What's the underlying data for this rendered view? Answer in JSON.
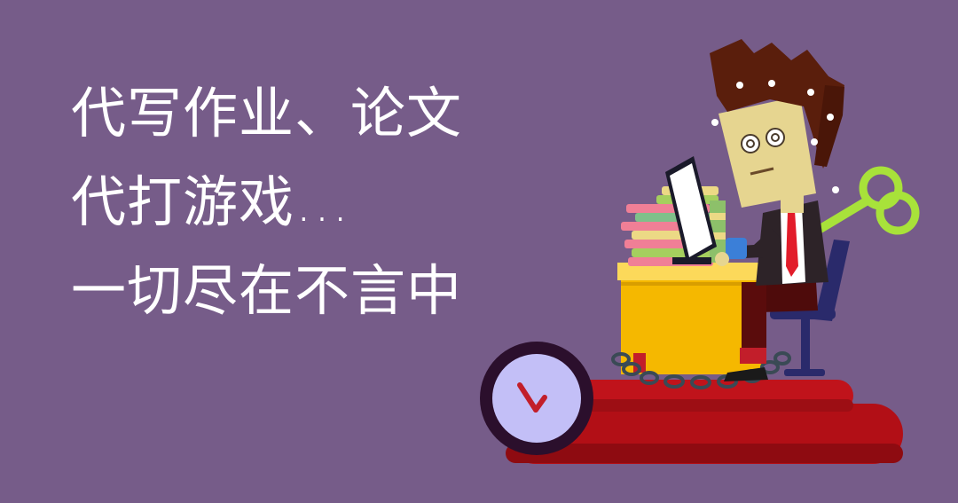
{
  "background_color": "#765c89",
  "text_color": "#ffffff",
  "headline": {
    "lines": [
      "代写作业、论文",
      "代打游戏…",
      "一切尽在不言中"
    ]
  },
  "illustration": {
    "icons": [
      "overworked-man",
      "computer-monitor",
      "book-stack",
      "desk",
      "office-chair",
      "wind-up-key",
      "clock",
      "chain",
      "red-book-base"
    ],
    "colors": {
      "hair": "#5a1e0c",
      "skin": "#e6d590",
      "desk": "#f5b800",
      "desk_top": "#fcd95a",
      "book_base": "#b20f16",
      "key": "#a8e23a",
      "clock_face": "#c3bff7",
      "clock_rim": "#2b0f2c",
      "suit": "#2d2328",
      "tie": "#e21c2a",
      "pants": "#5a0c0c",
      "chair": "#2a2a6b"
    }
  }
}
